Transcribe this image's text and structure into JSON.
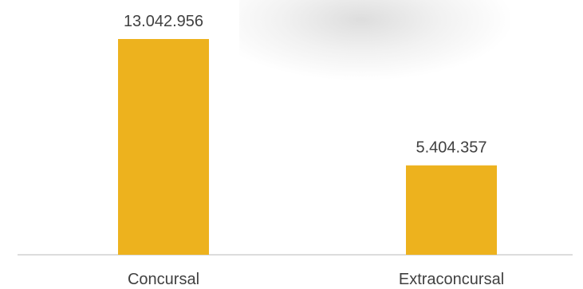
{
  "chart_data": {
    "type": "bar",
    "categories": [
      "Concursal",
      "Extraconcursal"
    ],
    "values": [
      13042956,
      5404357
    ],
    "value_labels": [
      "13.042.956",
      "5.404.357"
    ],
    "title": "",
    "xlabel": "",
    "ylabel": "",
    "ylim": [
      0,
      14000000
    ],
    "grid": false,
    "legend": "none",
    "colors": {
      "bar": "#EDB21E",
      "axis": "#D0D0D0",
      "text": "#404040"
    }
  }
}
